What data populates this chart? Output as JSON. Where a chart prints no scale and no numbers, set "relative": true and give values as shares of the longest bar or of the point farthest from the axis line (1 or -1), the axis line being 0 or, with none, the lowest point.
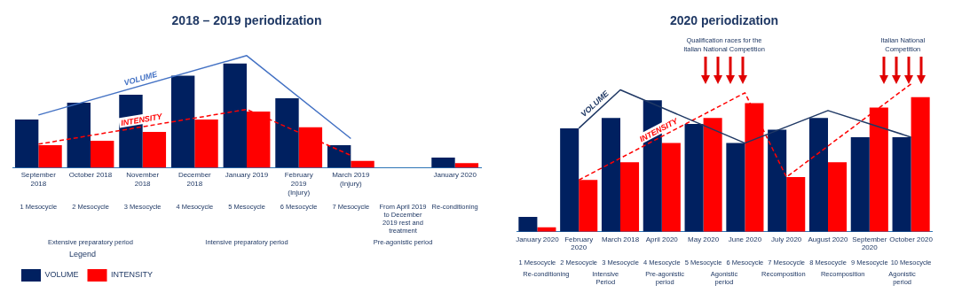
{
  "chart_data": [
    {
      "type": "bar",
      "title": "2018 – 2019 periodization",
      "relative": true,
      "marker": "none",
      "grid": false,
      "tick_labels": "x",
      "legend": "bottom left",
      "legend_title": "Legend",
      "categories": [
        "September 2018",
        "October 2018",
        "November 2018",
        "December 2018",
        "January 2019",
        "February 2019 (Injury)",
        "March 2019 (Injury)",
        null,
        "January 2020"
      ],
      "series": [
        {
          "name": "VOLUME",
          "color": "#002060",
          "values": [
            0.43,
            0.58,
            0.65,
            0.82,
            0.93,
            0.62,
            0.2,
            null,
            0.09
          ]
        },
        {
          "name": "INTENSITY",
          "color": "#ff0000",
          "values": [
            0.2,
            0.24,
            0.32,
            0.43,
            0.5,
            0.36,
            0.06,
            null,
            0.04
          ]
        },
        {
          "name": "VOLUME",
          "type": "line",
          "color": "#4472c4",
          "line_style": "solid",
          "values": [
            0.47,
            null,
            null,
            null,
            1,
            null,
            0.26,
            null,
            null
          ]
        },
        {
          "name": "INTENSITY",
          "type": "line",
          "color": "#ff0000",
          "line_style": "dashed",
          "values": [
            0.21,
            null,
            null,
            null,
            0.52,
            null,
            0.11,
            null,
            null
          ]
        }
      ],
      "annotations": [
        "1 Mesocycle",
        "2 Mesocycle",
        "3 Mesocycle",
        "4 Mesocycle",
        "5 Mesocycle",
        "6 Mesocycle",
        "7 Mesocycle",
        "From April 2019 to December 2019 rest and treatment",
        "Re-conditioning",
        "Extensive preparatory period",
        "Intensive preparatory period",
        "Pre-agonistic period"
      ]
    },
    {
      "type": "bar",
      "title": "2020 periodization",
      "relative": true,
      "marker": "none",
      "grid": false,
      "tick_labels": "x",
      "categories": [
        "January 2020",
        "February 2020",
        "March 2018",
        "April 2020",
        "May 2020",
        "June 2020",
        "July 2020",
        "August 2020",
        "September 2020",
        "October 2020"
      ],
      "series": [
        {
          "color": "#002060",
          "values": [
            0.1,
            0.7,
            0.77,
            0.89,
            0.73,
            0.6,
            0.69,
            0.77,
            0.64,
            0.64
          ]
        },
        {
          "color": "#ff0000",
          "values": [
            0.03,
            0.35,
            0.47,
            0.6,
            0.77,
            0.87,
            0.37,
            0.47,
            0.84,
            0.91
          ]
        },
        {
          "name": "VOLUME",
          "type": "line",
          "color": "#1f3864",
          "line_style": "solid",
          "values": [
            null,
            0.7,
            0.96,
            null,
            null,
            0.6,
            null,
            0.82,
            null,
            0.64
          ]
        },
        {
          "name": "INTENSITY",
          "type": "line",
          "color": "#ff0000",
          "line_style": "dashed",
          "values": [
            null,
            0.35,
            null,
            null,
            null,
            0.94,
            0.37,
            null,
            null,
            1
          ]
        }
      ],
      "annotations": [
        "Qualification races for the Italian National Competition",
        "Italian National Competition",
        "1 Mesocycle",
        "2 Mesocycle",
        "3 Mesocycle",
        "4 Mesocycle",
        "5 Mesocycle",
        "6 Mesocycle",
        "7 Mesocycle",
        "8 Mesocycle",
        "9 Mesocycle",
        "10 Mesocycle",
        "Re-conditioning",
        "Intensive Period",
        "Pre-agonistic period",
        "Agonistic period",
        "Recomposition",
        "Recomposition",
        "Agonistic period"
      ]
    }
  ]
}
